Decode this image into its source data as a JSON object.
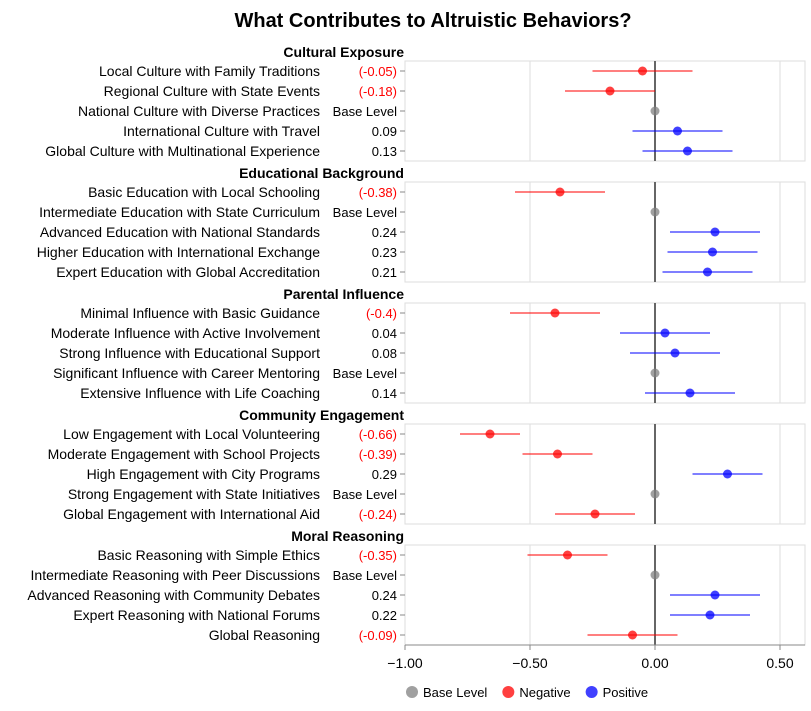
{
  "chart_data": {
    "type": "forest",
    "title": "What Contributes to Altruistic Behaviors?",
    "xlim": [
      -1.0,
      0.6
    ],
    "x_ticks": [
      -1.0,
      -0.5,
      0.0,
      0.5
    ],
    "x_tick_labels": [
      "−1.00",
      "−0.50",
      "0.00",
      "0.50"
    ],
    "grid": true,
    "reference_line": 0,
    "legend": {
      "placement": "bottom-left",
      "items": [
        {
          "label": "Base Level",
          "color": "#808080"
        },
        {
          "label": "Negative",
          "color": "#ff0000"
        },
        {
          "label": "Positive",
          "color": "#0000ff"
        }
      ]
    },
    "colors": {
      "base": "#808080",
      "negative": "#ff0000",
      "positive": "#0000ff",
      "zero_line": "#666666",
      "grid": "#dddddd"
    },
    "groups": [
      {
        "name": "Cultural Exposure",
        "rows": [
          {
            "label": "Local Culture with Family Traditions",
            "value_label": "(-0.05)",
            "estimate": -0.05,
            "ci": [
              -0.25,
              0.15
            ],
            "kind": "negative"
          },
          {
            "label": "Regional Culture with State Events",
            "value_label": "(-0.18)",
            "estimate": -0.18,
            "ci": [
              -0.36,
              0.0
            ],
            "kind": "negative"
          },
          {
            "label": "National Culture with Diverse Practices",
            "value_label": "Base Level",
            "estimate": 0,
            "ci": null,
            "kind": "base"
          },
          {
            "label": "International Culture with Travel",
            "value_label": "0.09",
            "estimate": 0.09,
            "ci": [
              -0.09,
              0.27
            ],
            "kind": "positive"
          },
          {
            "label": "Global Culture with Multinational Experience",
            "value_label": "0.13",
            "estimate": 0.13,
            "ci": [
              -0.05,
              0.31
            ],
            "kind": "positive"
          }
        ]
      },
      {
        "name": "Educational Background",
        "rows": [
          {
            "label": "Basic Education with Local Schooling",
            "value_label": "(-0.38)",
            "estimate": -0.38,
            "ci": [
              -0.56,
              -0.2
            ],
            "kind": "negative"
          },
          {
            "label": "Intermediate Education with State Curriculum",
            "value_label": "Base Level",
            "estimate": 0,
            "ci": null,
            "kind": "base"
          },
          {
            "label": "Advanced Education with National Standards",
            "value_label": "0.24",
            "estimate": 0.24,
            "ci": [
              0.06,
              0.42
            ],
            "kind": "positive"
          },
          {
            "label": "Higher Education with International Exchange",
            "value_label": "0.23",
            "estimate": 0.23,
            "ci": [
              0.05,
              0.41
            ],
            "kind": "positive"
          },
          {
            "label": "Expert Education with Global Accreditation",
            "value_label": "0.21",
            "estimate": 0.21,
            "ci": [
              0.03,
              0.39
            ],
            "kind": "positive"
          }
        ]
      },
      {
        "name": "Parental Influence",
        "rows": [
          {
            "label": "Minimal Influence with Basic Guidance",
            "value_label": "(-0.4)",
            "estimate": -0.4,
            "ci": [
              -0.58,
              -0.22
            ],
            "kind": "negative"
          },
          {
            "label": "Moderate Influence with Active Involvement",
            "value_label": "0.04",
            "estimate": 0.04,
            "ci": [
              -0.14,
              0.22
            ],
            "kind": "positive"
          },
          {
            "label": "Strong Influence with Educational Support",
            "value_label": "0.08",
            "estimate": 0.08,
            "ci": [
              -0.1,
              0.26
            ],
            "kind": "positive"
          },
          {
            "label": "Significant Influence with Career Mentoring",
            "value_label": "Base Level",
            "estimate": 0,
            "ci": null,
            "kind": "base"
          },
          {
            "label": "Extensive Influence with Life Coaching",
            "value_label": "0.14",
            "estimate": 0.14,
            "ci": [
              -0.04,
              0.32
            ],
            "kind": "positive"
          }
        ]
      },
      {
        "name": "Community Engagement",
        "rows": [
          {
            "label": "Low Engagement with Local Volunteering",
            "value_label": "(-0.66)",
            "estimate": -0.66,
            "ci": [
              -0.78,
              -0.54
            ],
            "kind": "negative"
          },
          {
            "label": "Moderate Engagement with School Projects",
            "value_label": "(-0.39)",
            "estimate": -0.39,
            "ci": [
              -0.53,
              -0.25
            ],
            "kind": "negative"
          },
          {
            "label": "High Engagement with City Programs",
            "value_label": "0.29",
            "estimate": 0.29,
            "ci": [
              0.15,
              0.43
            ],
            "kind": "positive"
          },
          {
            "label": "Strong Engagement with State Initiatives",
            "value_label": "Base Level",
            "estimate": 0,
            "ci": null,
            "kind": "base"
          },
          {
            "label": "Global Engagement with International Aid",
            "value_label": "(-0.24)",
            "estimate": -0.24,
            "ci": [
              -0.4,
              -0.08
            ],
            "kind": "negative"
          }
        ]
      },
      {
        "name": "Moral Reasoning",
        "rows": [
          {
            "label": "Basic Reasoning with Simple Ethics",
            "value_label": "(-0.35)",
            "estimate": -0.35,
            "ci": [
              -0.51,
              -0.19
            ],
            "kind": "negative"
          },
          {
            "label": "Intermediate Reasoning with Peer Discussions",
            "value_label": "Base Level",
            "estimate": 0,
            "ci": null,
            "kind": "base"
          },
          {
            "label": "Advanced Reasoning with Community Debates",
            "value_label": "0.24",
            "estimate": 0.24,
            "ci": [
              0.06,
              0.42
            ],
            "kind": "positive"
          },
          {
            "label": "Expert Reasoning with National Forums",
            "value_label": "0.22",
            "estimate": 0.22,
            "ci": [
              0.06,
              0.38
            ],
            "kind": "positive"
          },
          {
            "label": "Global Reasoning",
            "value_label": "(-0.09)",
            "estimate": -0.09,
            "ci": [
              -0.27,
              0.09
            ],
            "kind": "negative"
          }
        ]
      }
    ]
  }
}
